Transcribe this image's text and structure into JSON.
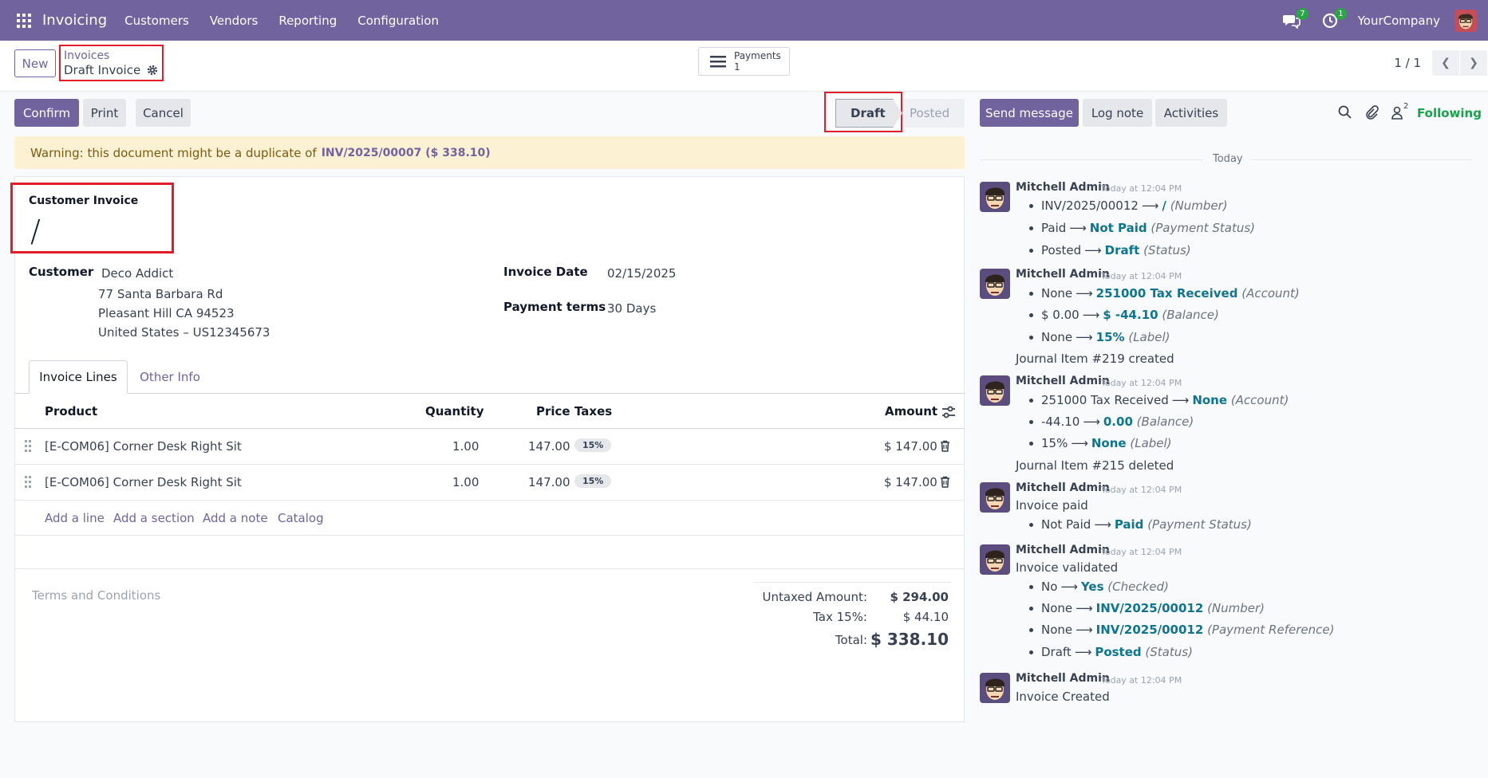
{
  "topbar": {
    "brand": "Invoicing",
    "nav": [
      "Customers",
      "Vendors",
      "Reporting",
      "Configuration"
    ],
    "messages_badge": "7",
    "activities_badge": "1",
    "company": "YourCompany"
  },
  "control": {
    "new_label": "New",
    "breadcrumb_parent": "Invoices",
    "breadcrumb_current": "Draft Invoice",
    "payments_label": "Payments",
    "payments_count": "1",
    "pager": "1 / 1"
  },
  "actions": {
    "confirm": "Confirm",
    "print": "Print",
    "cancel": "Cancel"
  },
  "status": {
    "draft": "Draft",
    "posted": "Posted"
  },
  "warning": {
    "text": "Warning: this document might be a duplicate of",
    "link": "INV/2025/00007 ($ 338.10)"
  },
  "form": {
    "title_label": "Customer Invoice",
    "title_value": "/",
    "customer_label": "Customer",
    "customer_name": "Deco Addict",
    "address_line1": "77 Santa Barbara Rd",
    "address_line2": "Pleasant Hill CA 94523",
    "address_line3": "United States – US12345673",
    "invoice_date_label": "Invoice Date",
    "invoice_date": "02/15/2025",
    "payment_terms_label": "Payment terms",
    "payment_terms": "30 Days"
  },
  "tabs": {
    "lines": "Invoice Lines",
    "other": "Other Info"
  },
  "table": {
    "headers": {
      "product": "Product",
      "quantity": "Quantity",
      "price": "Price",
      "taxes": "Taxes",
      "amount": "Amount"
    },
    "rows": [
      {
        "product": "[E-COM06] Corner Desk Right Sit",
        "quantity": "1.00",
        "price": "147.00",
        "tax": "15%",
        "amount": "$ 147.00"
      },
      {
        "product": "[E-COM06] Corner Desk Right Sit",
        "quantity": "1.00",
        "price": "147.00",
        "tax": "15%",
        "amount": "$ 147.00"
      }
    ],
    "add_line": "Add a line",
    "add_section": "Add a section",
    "add_note": "Add a note",
    "catalog": "Catalog"
  },
  "footer": {
    "terms_placeholder": "Terms and Conditions",
    "untaxed_label": "Untaxed Amount:",
    "untaxed_value": "$ 294.00",
    "tax_label": "Tax 15%:",
    "tax_value": "$ 44.10",
    "total_label": "Total:",
    "total_value": "$ 338.10"
  },
  "chatter": {
    "send_message": "Send message",
    "log_note": "Log note",
    "activities": "Activities",
    "followers_count": "2",
    "following": "Following",
    "today": "Today",
    "author": "Mitchell Admin",
    "time": "Today at 12:04 PM",
    "m1": [
      {
        "old": "INV/2025/00012",
        "new": "/",
        "field": "(Number)"
      },
      {
        "old": "Paid",
        "new": "Not Paid",
        "field": "(Payment Status)"
      },
      {
        "old": "Posted",
        "new": "Draft",
        "field": "(Status)"
      }
    ],
    "m2": [
      {
        "old": "None",
        "new": "251000 Tax Received",
        "field": "(Account)"
      },
      {
        "old": "$ 0.00",
        "new": "$ -44.10",
        "field": "(Balance)"
      },
      {
        "old": "None",
        "new": "15%",
        "field": "(Label)"
      }
    ],
    "m2_note": "Journal Item #219 created",
    "m3": [
      {
        "old": "251000 Tax Received",
        "new": "None",
        "field": "(Account)"
      },
      {
        "old": "-44.10",
        "new": "0.00",
        "field": "(Balance)"
      },
      {
        "old": "15%",
        "new": "None",
        "field": "(Label)"
      }
    ],
    "m3_note": "Journal Item #215 deleted",
    "m4_title": "Invoice paid",
    "m4": [
      {
        "old": "Not Paid",
        "new": "Paid",
        "field": "(Payment Status)"
      }
    ],
    "m5_title": "Invoice validated",
    "m5": [
      {
        "old": "No",
        "new": "Yes",
        "field": "(Checked)"
      },
      {
        "old": "None",
        "new": "INV/2025/00012",
        "field": "(Number)"
      },
      {
        "old": "None",
        "new": "INV/2025/00012",
        "field": "(Payment Reference)"
      },
      {
        "old": "Draft",
        "new": "Posted",
        "field": "(Status)"
      }
    ],
    "m6_title": "Invoice Created"
  }
}
